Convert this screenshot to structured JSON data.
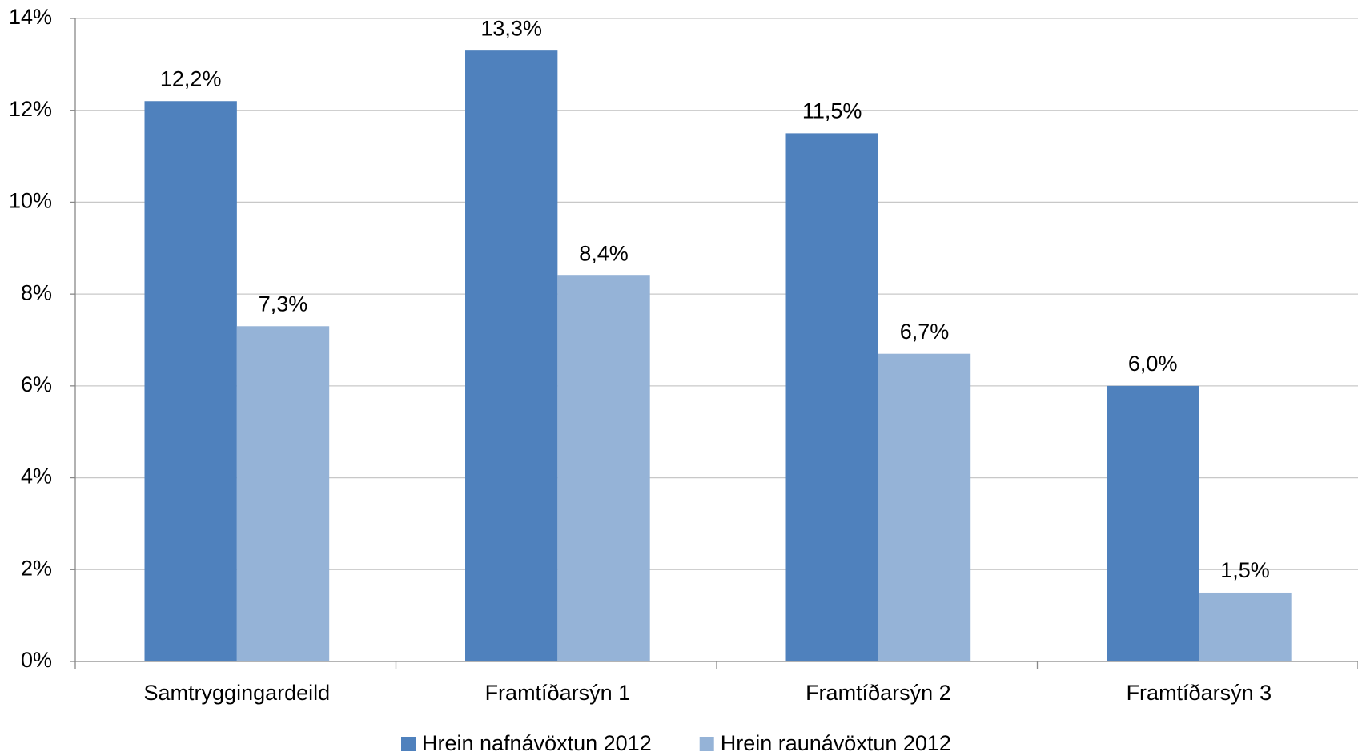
{
  "chart_data": {
    "type": "bar",
    "categories": [
      "Samtryggingardeild",
      "Framtíðarsýn 1",
      "Framtíðarsýn 2",
      "Framtíðarsýn 3"
    ],
    "series": [
      {
        "name": "Hrein nafnávöxtun 2012",
        "color": "#4f81bd",
        "values": [
          12.2,
          13.3,
          11.5,
          6.0
        ],
        "value_labels": [
          "12,2%",
          "13,3%",
          "11,5%",
          "6,0%"
        ]
      },
      {
        "name": "Hrein raunávöxtun 2012",
        "color": "#95b3d7",
        "values": [
          7.3,
          8.4,
          6.7,
          1.5
        ],
        "value_labels": [
          "7,3%",
          "8,4%",
          "6,7%",
          "1,5%"
        ]
      }
    ],
    "ylim": [
      0,
      14
    ],
    "yticks": [
      {
        "value": 0,
        "label": "0%"
      },
      {
        "value": 2,
        "label": "2%"
      },
      {
        "value": 4,
        "label": "4%"
      },
      {
        "value": 6,
        "label": "6%"
      },
      {
        "value": 8,
        "label": "8%"
      },
      {
        "value": 10,
        "label": "10%"
      },
      {
        "value": 12,
        "label": "12%"
      },
      {
        "value": 14,
        "label": "14%"
      }
    ],
    "grid": true,
    "legend": "bottom"
  }
}
